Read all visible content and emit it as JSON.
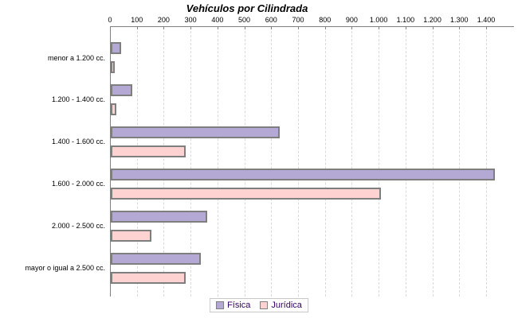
{
  "chart_data": {
    "type": "bar",
    "orientation": "horizontal",
    "title": "Vehículos por Cilindrada",
    "categories": [
      "menor a 1.200 cc.",
      "1.200 - 1.400 cc.",
      "1.400 - 1.600 cc.",
      "1.600 - 2.000 cc.",
      "2.000 - 2.500 cc.",
      "mayor o igual a 2.500 cc."
    ],
    "series": [
      {
        "name": "Física",
        "key": "fisica",
        "color": "#b3a9d4",
        "border_color": "#7e7e7e",
        "values": [
          40,
          80,
          630,
          1430,
          360,
          335
        ]
      },
      {
        "name": "Jurídica",
        "key": "juridica",
        "color": "#ffd2d2",
        "border_color": "#7e7e7e",
        "values": [
          15,
          20,
          280,
          1005,
          150,
          280
        ]
      }
    ],
    "x_axis": {
      "position": "top",
      "tick_labels": [
        "0",
        "100",
        "200",
        "300",
        "400",
        "500",
        "600",
        "700",
        "800",
        "900",
        "1.000",
        "1.100",
        "1.200",
        "1.300",
        "1.400"
      ],
      "tick_values": [
        0,
        100,
        200,
        300,
        400,
        500,
        600,
        700,
        800,
        900,
        1000,
        1100,
        1200,
        1300,
        1400
      ],
      "max_tick": 1400,
      "gridlines": "dashed-vertical"
    },
    "legend": {
      "position": "bottom",
      "entries": [
        "Física",
        "Jurídica"
      ]
    },
    "colors": {
      "axis": "#808080",
      "grid": "#d9d9d9",
      "text": "#000000",
      "legend_text": "#330066",
      "legend_border": "#c9c9c9",
      "background": "#ffffff"
    }
  }
}
